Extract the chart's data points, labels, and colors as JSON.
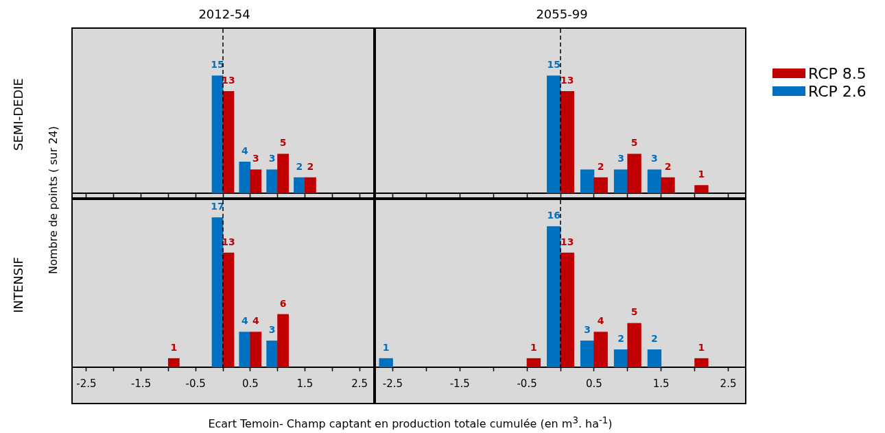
{
  "chart_data": [
    {
      "type": "bar",
      "title": "2012-54",
      "ylabel": "SEMI-DEDIE",
      "annotations": [
        "Nombre de points ( sur 24)"
      ],
      "xlim": [
        -2.75,
        2.75
      ],
      "xticks": [
        -2.5,
        {
          "value": -2,
          "label": null
        },
        -1.5,
        {
          "value": -1,
          "label": null
        },
        -0.5,
        {
          "value": 0,
          "label": null
        },
        0.5,
        {
          "value": 1,
          "label": null
        },
        1.5,
        {
          "value": 2,
          "label": null
        },
        2.5
      ],
      "ylim": [
        0,
        21
      ],
      "tick_labels": false,
      "grid": false,
      "data_labels": true,
      "ref_lines": [
        {
          "axis": "x",
          "value": 0,
          "color": "#000000",
          "line_style": "dashed"
        }
      ],
      "series": [
        {
          "color": "#c00000",
          "x": [
            0.1,
            0.6,
            1.1,
            1.6
          ],
          "values": [
            13,
            3,
            5,
            2
          ]
        },
        {
          "color": "#0070c0",
          "x": [
            -0.1,
            0.4,
            0.9,
            1.4
          ],
          "values": [
            15,
            4,
            3,
            2
          ]
        }
      ]
    },
    {
      "type": "bar",
      "title": "2055-99",
      "legend": "right",
      "xlim": [
        -2.75,
        2.75
      ],
      "xticks": [
        -2.5,
        {
          "value": -2,
          "label": null
        },
        -1.5,
        {
          "value": -1,
          "label": null
        },
        -0.5,
        {
          "value": 0,
          "label": null
        },
        0.5,
        {
          "value": 1,
          "label": null
        },
        1.5,
        {
          "value": 2,
          "label": null
        },
        2.5
      ],
      "ylim": [
        0,
        21
      ],
      "tick_labels": false,
      "grid": false,
      "ref_lines": [
        {
          "axis": "x",
          "value": 0,
          "color": "#000000",
          "line_style": "dashed"
        }
      ],
      "series": [
        {
          "name": "RCP 8.5",
          "color": "#c00000",
          "x": [
            0.1,
            0.6,
            1.1,
            1.6,
            2.1
          ],
          "values": [
            13,
            2,
            5,
            2,
            1
          ],
          "value_labels": [
            "13",
            "2",
            "5",
            "2",
            "1"
          ]
        },
        {
          "name": "RCP 2.6",
          "color": "#0070c0",
          "x": [
            -0.1,
            0.4,
            0.9,
            1.4
          ],
          "values": [
            15,
            3,
            3,
            3
          ],
          "value_labels": [
            "15",
            null,
            "3",
            "3"
          ]
        }
      ]
    },
    {
      "type": "bar",
      "ylabel": "INTENSIF",
      "xlabel": "Ecart Temoin- Champ captant en production totale cumulée  (en m$^{3}$. ha$^{-1}$)",
      "xlim": [
        -2.75,
        2.75
      ],
      "xticks": [
        -2.5,
        {
          "value": -2,
          "label": null
        },
        -1.5,
        {
          "value": -1,
          "label": null
        },
        -0.5,
        {
          "value": 0,
          "label": null
        },
        0.5,
        {
          "value": 1,
          "label": null
        },
        1.5,
        {
          "value": 2,
          "label": null
        },
        2.5
      ],
      "ylim": [
        0,
        19
      ],
      "tick_labels": "x",
      "grid": false,
      "data_labels": true,
      "ref_lines": [
        {
          "axis": "x",
          "value": 0,
          "color": "#000000",
          "line_style": "dashed"
        }
      ],
      "series": [
        {
          "color": "#c00000",
          "x": [
            -0.9,
            0.1,
            0.6,
            1.1
          ],
          "values": [
            1,
            13,
            4,
            6
          ]
        },
        {
          "color": "#0070c0",
          "x": [
            -0.1,
            0.4,
            0.9
          ],
          "values": [
            17,
            4,
            3
          ]
        }
      ]
    },
    {
      "type": "bar",
      "xlim": [
        -2.75,
        2.75
      ],
      "xticks": [
        -2.5,
        {
          "value": -2,
          "label": null
        },
        -1.5,
        {
          "value": -1,
          "label": null
        },
        -0.5,
        {
          "value": 0,
          "label": null
        },
        0.5,
        {
          "value": 1,
          "label": null
        },
        1.5,
        {
          "value": 2,
          "label": null
        },
        2.5
      ],
      "ylim": [
        0,
        19
      ],
      "tick_labels": "x",
      "grid": false,
      "data_labels": true,
      "ref_lines": [
        {
          "axis": "x",
          "value": 0,
          "color": "#000000",
          "line_style": "dashed"
        }
      ],
      "series": [
        {
          "color": "#c00000",
          "x": [
            -0.4,
            0.1,
            0.6,
            1.1,
            2.1
          ],
          "values": [
            1,
            13,
            4,
            5,
            1
          ]
        },
        {
          "color": "#0070c0",
          "x": [
            -2.6,
            -0.1,
            0.4,
            0.9,
            1.4
          ],
          "values": [
            1,
            16,
            3,
            2,
            2
          ]
        }
      ]
    }
  ]
}
